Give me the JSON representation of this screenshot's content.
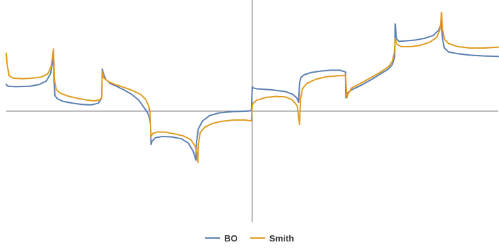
{
  "chart_data": {
    "type": "line",
    "title": "",
    "xlabel": "",
    "ylabel": "",
    "xlim": [
      -5.2,
      5.2
    ],
    "ylim": [
      -2.5,
      2.5
    ],
    "grid": false,
    "legend_position": "bottom-center",
    "series": [
      {
        "name": "BO",
        "color": "#5b7fb2",
        "points": [
          [
            -5.2,
            0.6
          ],
          [
            -5.19,
            0.58
          ],
          [
            -5.15,
            0.56
          ],
          [
            -5.0,
            0.55
          ],
          [
            -4.7,
            0.56
          ],
          [
            -4.5,
            0.6
          ],
          [
            -4.35,
            0.68
          ],
          [
            -4.26,
            0.85
          ],
          [
            -4.22,
            1.1
          ],
          [
            -4.2,
            1.25
          ],
          [
            -4.19,
            0.68
          ],
          [
            -4.17,
            0.35
          ],
          [
            -4.12,
            0.28
          ],
          [
            -4.0,
            0.22
          ],
          [
            -3.8,
            0.18
          ],
          [
            -3.6,
            0.15
          ],
          [
            -3.4,
            0.14
          ],
          [
            -3.25,
            0.18
          ],
          [
            -3.18,
            0.3
          ],
          [
            -3.17,
            0.95
          ],
          [
            -3.15,
            0.86
          ],
          [
            -3.1,
            0.72
          ],
          [
            -3.0,
            0.62
          ],
          [
            -2.85,
            0.55
          ],
          [
            -2.7,
            0.47
          ],
          [
            -2.55,
            0.38
          ],
          [
            -2.4,
            0.25
          ],
          [
            -2.3,
            0.1
          ],
          [
            -2.22,
            -0.02
          ],
          [
            -2.17,
            -0.15
          ],
          [
            -2.15,
            -0.3
          ],
          [
            -2.14,
            -0.75
          ],
          [
            -2.12,
            -0.68
          ],
          [
            -2.05,
            -0.6
          ],
          [
            -1.9,
            -0.57
          ],
          [
            -1.7,
            -0.58
          ],
          [
            -1.5,
            -0.62
          ],
          [
            -1.35,
            -0.72
          ],
          [
            -1.25,
            -0.9
          ],
          [
            -1.19,
            -1.1
          ],
          [
            -1.18,
            -0.72
          ],
          [
            -1.14,
            -0.4
          ],
          [
            -1.05,
            -0.22
          ],
          [
            -0.9,
            -0.1
          ],
          [
            -0.7,
            -0.04
          ],
          [
            -0.4,
            -0.01
          ],
          [
            -0.12,
            0.0
          ],
          [
            -0.02,
            0.01
          ],
          [
            0.0,
            0.55
          ],
          [
            0.02,
            0.52
          ],
          [
            0.12,
            0.5
          ],
          [
            0.4,
            0.48
          ],
          [
            0.7,
            0.44
          ],
          [
            0.85,
            0.38
          ],
          [
            0.94,
            0.3
          ],
          [
            0.98,
            0.2
          ],
          [
            1.0,
            0.64
          ],
          [
            1.03,
            0.76
          ],
          [
            1.1,
            0.82
          ],
          [
            1.25,
            0.87
          ],
          [
            1.45,
            0.9
          ],
          [
            1.65,
            0.92
          ],
          [
            1.85,
            0.92
          ],
          [
            1.97,
            0.88
          ],
          [
            1.98,
            0.3
          ],
          [
            2.0,
            0.4
          ],
          [
            2.1,
            0.48
          ],
          [
            2.3,
            0.58
          ],
          [
            2.5,
            0.7
          ],
          [
            2.7,
            0.83
          ],
          [
            2.88,
            0.95
          ],
          [
            2.96,
            1.05
          ],
          [
            3.01,
            1.22
          ],
          [
            3.02,
            1.96
          ],
          [
            3.05,
            1.62
          ],
          [
            3.1,
            1.57
          ],
          [
            3.25,
            1.58
          ],
          [
            3.45,
            1.6
          ],
          [
            3.65,
            1.64
          ],
          [
            3.82,
            1.7
          ],
          [
            3.94,
            1.82
          ],
          [
            4.0,
            1.98
          ],
          [
            4.02,
            1.62
          ],
          [
            4.06,
            1.42
          ],
          [
            4.15,
            1.33
          ],
          [
            4.35,
            1.29
          ],
          [
            4.6,
            1.26
          ],
          [
            4.9,
            1.24
          ],
          [
            5.2,
            1.23
          ]
        ]
      },
      {
        "name": "Smith",
        "color": "#e09b1f",
        "points": [
          [
            -5.2,
            1.3
          ],
          [
            -5.18,
            1.05
          ],
          [
            -5.14,
            0.8
          ],
          [
            -5.05,
            0.74
          ],
          [
            -4.85,
            0.73
          ],
          [
            -4.65,
            0.74
          ],
          [
            -4.45,
            0.77
          ],
          [
            -4.32,
            0.84
          ],
          [
            -4.25,
            1.0
          ],
          [
            -4.2,
            1.4
          ],
          [
            -4.18,
            0.7
          ],
          [
            -4.14,
            0.48
          ],
          [
            -4.05,
            0.4
          ],
          [
            -3.9,
            0.34
          ],
          [
            -3.7,
            0.29
          ],
          [
            -3.5,
            0.25
          ],
          [
            -3.35,
            0.23
          ],
          [
            -3.23,
            0.25
          ],
          [
            -3.18,
            0.3
          ],
          [
            -3.17,
            0.9
          ],
          [
            -3.14,
            0.75
          ],
          [
            -3.05,
            0.67
          ],
          [
            -2.9,
            0.6
          ],
          [
            -2.7,
            0.53
          ],
          [
            -2.5,
            0.45
          ],
          [
            -2.35,
            0.37
          ],
          [
            -2.25,
            0.26
          ],
          [
            -2.19,
            0.12
          ],
          [
            -2.16,
            -0.02
          ],
          [
            -2.15,
            -0.35
          ],
          [
            -2.14,
            -0.58
          ],
          [
            -2.1,
            -0.5
          ],
          [
            -2.0,
            -0.47
          ],
          [
            -1.85,
            -0.47
          ],
          [
            -1.65,
            -0.51
          ],
          [
            -1.45,
            -0.56
          ],
          [
            -1.3,
            -0.64
          ],
          [
            -1.2,
            -0.8
          ],
          [
            -1.16,
            -1.0
          ],
          [
            -1.15,
            -1.15
          ],
          [
            -1.14,
            -0.75
          ],
          [
            -1.1,
            -0.48
          ],
          [
            -1.0,
            -0.36
          ],
          [
            -0.85,
            -0.28
          ],
          [
            -0.65,
            -0.23
          ],
          [
            -0.4,
            -0.2
          ],
          [
            -0.15,
            -0.2
          ],
          [
            -0.02,
            -0.22
          ],
          [
            0.0,
            0.13
          ],
          [
            0.02,
            0.18
          ],
          [
            0.1,
            0.25
          ],
          [
            0.3,
            0.31
          ],
          [
            0.5,
            0.33
          ],
          [
            0.7,
            0.32
          ],
          [
            0.85,
            0.25
          ],
          [
            0.95,
            0.12
          ],
          [
            1.0,
            -0.3
          ],
          [
            1.02,
            0.28
          ],
          [
            1.06,
            0.5
          ],
          [
            1.15,
            0.62
          ],
          [
            1.35,
            0.72
          ],
          [
            1.55,
            0.77
          ],
          [
            1.75,
            0.79
          ],
          [
            1.9,
            0.8
          ],
          [
            1.97,
            0.8
          ],
          [
            2.0,
            0.3
          ],
          [
            2.02,
            0.38
          ],
          [
            2.1,
            0.52
          ],
          [
            2.3,
            0.63
          ],
          [
            2.5,
            0.75
          ],
          [
            2.7,
            0.87
          ],
          [
            2.88,
            1.0
          ],
          [
            2.96,
            1.12
          ],
          [
            3.0,
            1.3
          ],
          [
            3.02,
            1.62
          ],
          [
            3.06,
            1.5
          ],
          [
            3.15,
            1.45
          ],
          [
            3.35,
            1.45
          ],
          [
            3.55,
            1.48
          ],
          [
            3.75,
            1.55
          ],
          [
            3.9,
            1.66
          ],
          [
            3.97,
            1.85
          ],
          [
            4.0,
            2.22
          ],
          [
            4.02,
            1.85
          ],
          [
            4.06,
            1.62
          ],
          [
            4.15,
            1.52
          ],
          [
            4.35,
            1.45
          ],
          [
            4.6,
            1.42
          ],
          [
            4.9,
            1.42
          ],
          [
            5.2,
            1.44
          ]
        ]
      }
    ]
  }
}
